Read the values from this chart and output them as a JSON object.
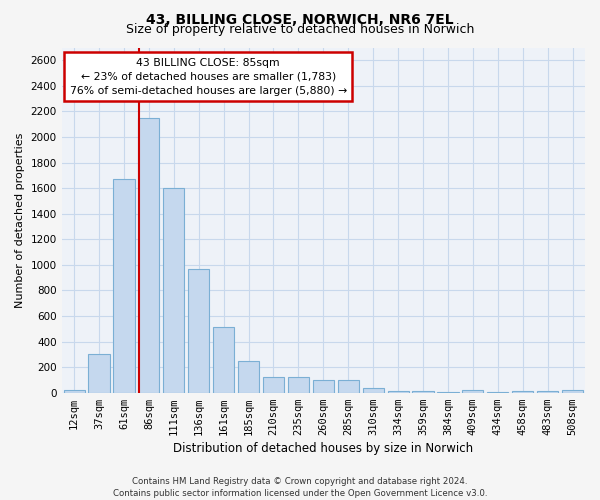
{
  "title": "43, BILLING CLOSE, NORWICH, NR6 7EL",
  "subtitle": "Size of property relative to detached houses in Norwich",
  "xlabel": "Distribution of detached houses by size in Norwich",
  "ylabel": "Number of detached properties",
  "categories": [
    "12sqm",
    "37sqm",
    "61sqm",
    "86sqm",
    "111sqm",
    "136sqm",
    "161sqm",
    "185sqm",
    "210sqm",
    "235sqm",
    "260sqm",
    "285sqm",
    "310sqm",
    "334sqm",
    "359sqm",
    "384sqm",
    "409sqm",
    "434sqm",
    "458sqm",
    "483sqm",
    "508sqm"
  ],
  "values": [
    20,
    300,
    1670,
    2150,
    1600,
    970,
    510,
    245,
    120,
    120,
    100,
    100,
    40,
    15,
    10,
    5,
    20,
    5,
    15,
    10,
    20
  ],
  "bar_color": "#c5d8ee",
  "bar_edge_color": "#7bafd4",
  "bar_width": 0.85,
  "property_label": "43 BILLING CLOSE: 85sqm",
  "annotation_line1": "← 23% of detached houses are smaller (1,783)",
  "annotation_line2": "76% of semi-detached houses are larger (5,880) →",
  "vline_color": "#cc0000",
  "vline_x": 2.6,
  "annotation_box_color": "#cc0000",
  "grid_color": "#c8d8ec",
  "bg_color": "#eef2f8",
  "fig_bg_color": "#f5f5f5",
  "ylim": [
    0,
    2700
  ],
  "yticks": [
    0,
    200,
    400,
    600,
    800,
    1000,
    1200,
    1400,
    1600,
    1800,
    2000,
    2200,
    2400,
    2600
  ],
  "title_fontsize": 10,
  "subtitle_fontsize": 9,
  "xlabel_fontsize": 8.5,
  "ylabel_fontsize": 8,
  "tick_fontsize": 7.5,
  "footer_line1": "Contains HM Land Registry data © Crown copyright and database right 2024.",
  "footer_line2": "Contains public sector information licensed under the Open Government Licence v3.0."
}
